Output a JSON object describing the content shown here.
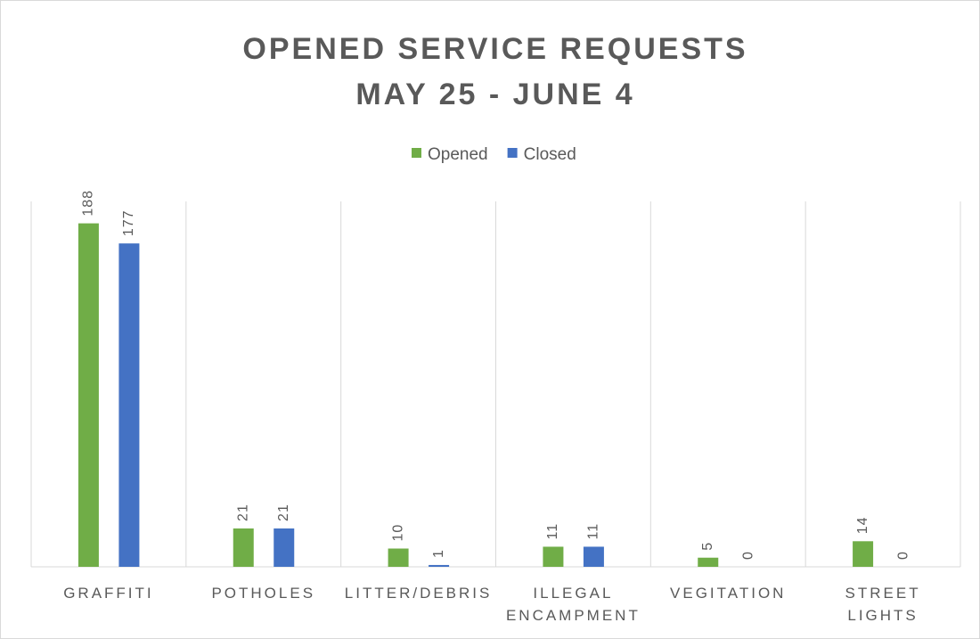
{
  "chart_data": {
    "type": "bar",
    "title": [
      "OPENED SERVICE REQUESTS",
      "MAY 25 - JUNE 4"
    ],
    "categories": [
      "GRAFFITI",
      "POTHOLES",
      "LITTER/DEBRIS",
      "ILLEGAL ENCAMPMENT",
      "VEGITATION",
      "STREET LIGHTS"
    ],
    "series": [
      {
        "name": "Opened",
        "color": "#70ad47",
        "values": [
          188,
          21,
          10,
          11,
          5,
          14
        ]
      },
      {
        "name": "Closed",
        "color": "#4472c4",
        "values": [
          177,
          21,
          1,
          11,
          0,
          0
        ]
      }
    ],
    "ylim": [
      0,
      200
    ],
    "legend": "top",
    "data_labels": true
  }
}
